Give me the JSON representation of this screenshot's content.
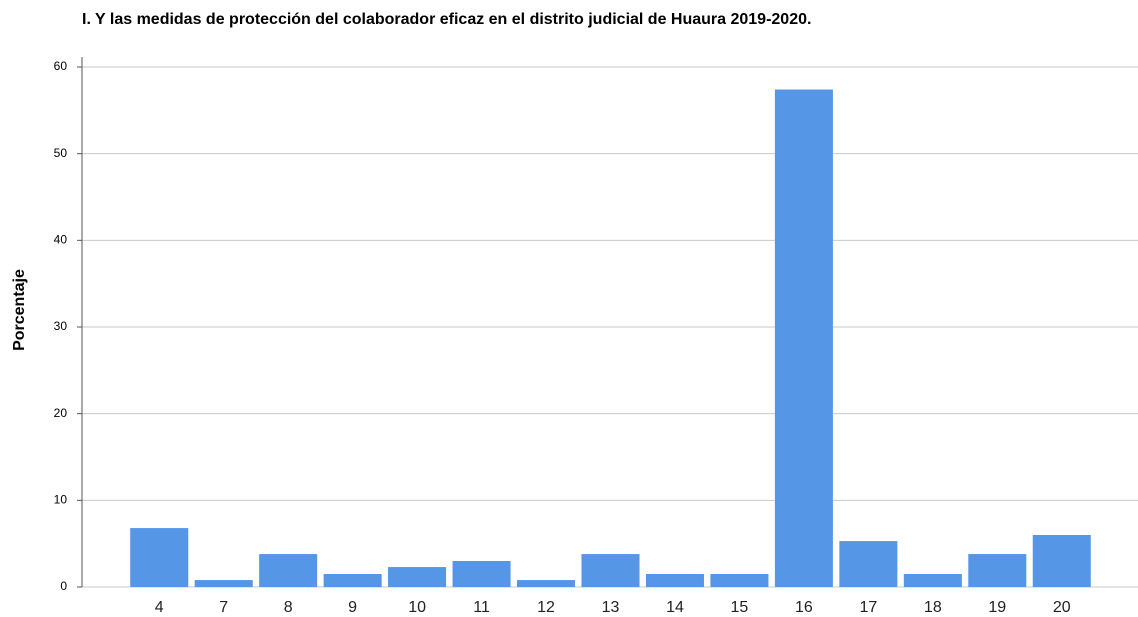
{
  "chart_data": {
    "type": "bar",
    "title": "I. Y las medidas de protección del colaborador eficaz en el distrito judicial de Huaura 2019-2020.",
    "y_label": "Porcentaje",
    "categories": [
      "4",
      "7",
      "8",
      "9",
      "10",
      "11",
      "12",
      "13",
      "14",
      "15",
      "16",
      "17",
      "18",
      "19",
      "20"
    ],
    "values": [
      6.8,
      0.8,
      3.8,
      1.5,
      2.3,
      3.0,
      0.8,
      3.8,
      1.5,
      1.5,
      57.4,
      5.3,
      1.5,
      3.8,
      6.0
    ],
    "color": "#5596e6",
    "ylim": [
      0,
      60
    ],
    "yticks": [
      0,
      10,
      20,
      30,
      40,
      50,
      60
    ],
    "grid": true
  }
}
